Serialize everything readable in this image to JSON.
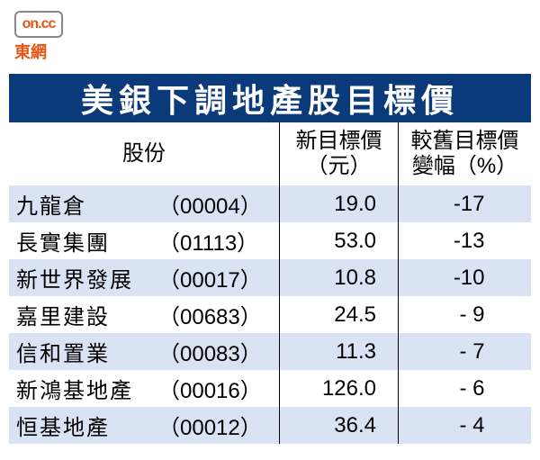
{
  "logo": {
    "brand": "on.cc",
    "label": "東網"
  },
  "colors": {
    "title_bg": "#0a3a7a",
    "title_fg": "#ffffff",
    "row_alt": "#d9e3f3",
    "row_base": "#ffffff",
    "border": "#000000",
    "text": "#000000"
  },
  "table": {
    "title": "美銀下調地產股目標價",
    "headers": {
      "stock": "股份",
      "price_l1": "新目標價",
      "price_l2": "（元）",
      "change_l1": "較舊目標價",
      "change_l2": "變幅（%）"
    },
    "rows": [
      {
        "name": "九龍倉",
        "code": "（00004）",
        "price": "19.0",
        "change": "-17"
      },
      {
        "name": "長實集團",
        "code": "（01113）",
        "price": "53.0",
        "change": "-13"
      },
      {
        "name": "新世界發展",
        "code": "（00017）",
        "price": "10.8",
        "change": "-10"
      },
      {
        "name": "嘉里建設",
        "code": "（00683）",
        "price": "24.5",
        "change": "- 9"
      },
      {
        "name": "信和置業",
        "code": "（00083）",
        "price": "11.3",
        "change": "- 7"
      },
      {
        "name": "新鴻基地產",
        "code": "（00016）",
        "price": "126.0",
        "change": "- 6"
      },
      {
        "name": "恒基地產",
        "code": "（00012）",
        "price": "36.4",
        "change": "- 4"
      }
    ]
  }
}
